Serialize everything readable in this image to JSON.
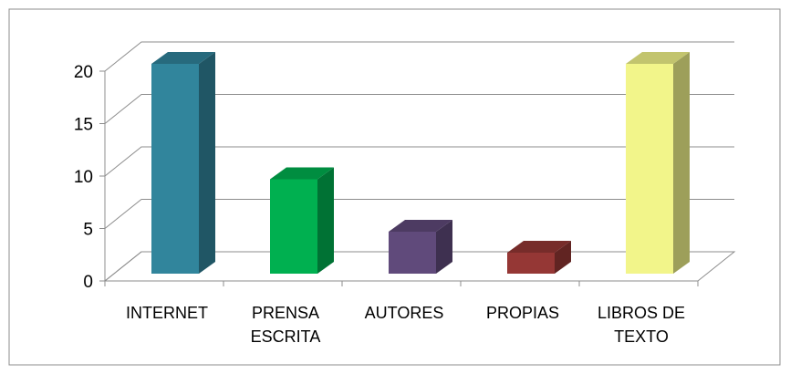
{
  "chart_data": {
    "type": "bar3d",
    "categories": [
      "INTERNET",
      "PRENSA ESCRITA",
      "AUTORES",
      "PROPIAS",
      "LIBROS DE TEXTO"
    ],
    "values": [
      20,
      9,
      4,
      2,
      20
    ],
    "colors": [
      "#31859c",
      "#00b050",
      "#604a7b",
      "#953735",
      "#f2f58a"
    ],
    "ylim": [
      0,
      20
    ],
    "yticks": [
      0,
      5,
      10,
      15,
      20
    ],
    "grid": true
  }
}
